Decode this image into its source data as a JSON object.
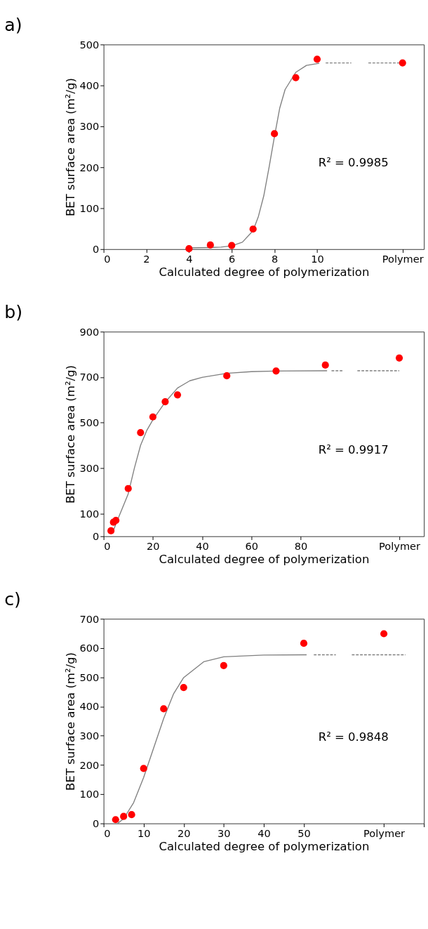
{
  "chart_data": [
    {
      "type": "scatter",
      "title": "a)",
      "xlabel": "Calculated degree of polymerization",
      "ylabel": "BET surface area (m²/g)",
      "annotations": [
        "R² = 0.9985"
      ],
      "xlim": [
        0,
        15
      ],
      "xticks": [
        0,
        2,
        4,
        6,
        8,
        10,
        {
          "value": 14,
          "label": "Polymer"
        }
      ],
      "ylim": [
        0,
        500
      ],
      "yticks": [
        0,
        100,
        200,
        300,
        400,
        500
      ],
      "grid": false,
      "series": [
        {
          "type": "line",
          "color": "#808080",
          "line_style": "solid",
          "x": [
            4,
            5,
            5.5,
            6,
            6.5,
            7,
            7.25,
            7.5,
            7.75,
            8,
            8.25,
            8.5,
            9,
            9.5,
            10.1
          ],
          "values": [
            3,
            4,
            5,
            8,
            17,
            45,
            80,
            130,
            200,
            275,
            345,
            390,
            432,
            449,
            454
          ]
        },
        {
          "type": "line",
          "color": "#808080",
          "line_style": "dashed",
          "x": [
            10.4,
            11.6
          ],
          "values": [
            455,
            455
          ]
        },
        {
          "type": "line",
          "color": "#808080",
          "line_style": "dashed",
          "x": [
            12.4,
            14
          ],
          "values": [
            455,
            455
          ]
        },
        {
          "color": "#ff0000",
          "marker": "circle",
          "x": [
            4,
            5,
            6,
            7,
            8,
            9,
            10
          ],
          "values": [
            1,
            10,
            9,
            49,
            282,
            419,
            464
          ]
        },
        {
          "color": "#ff0000",
          "marker": "circle",
          "x": [
            14
          ],
          "values": [
            455
          ]
        }
      ]
    },
    {
      "type": "scatter",
      "title": "b)",
      "xlabel": "Calculated degree of polymerization",
      "ylabel": "BET surface area (m²/g)",
      "annotations": [
        "R² = 0.9917"
      ],
      "xlim": [
        0,
        130
      ],
      "xticks": [
        0,
        20,
        40,
        60,
        80,
        {
          "value": 120,
          "label": "Polymer"
        }
      ],
      "ylim": [
        0,
        900
      ],
      "yticks": [
        0,
        100,
        300,
        500,
        700,
        900
      ],
      "grid": false,
      "series": [
        {
          "type": "line",
          "color": "#808080",
          "line_style": "solid",
          "x": [
            3.7,
            5,
            7.5,
            10,
            12.5,
            15,
            17.5,
            20,
            25,
            30,
            35,
            40,
            50,
            60,
            70,
            90.7
          ],
          "values": [
            17,
            55,
            120,
            187,
            300,
            400,
            465,
            512,
            590,
            652,
            684,
            699,
            717,
            724,
            727,
            728
          ]
        },
        {
          "type": "line",
          "color": "#808080",
          "line_style": "dashed",
          "x": [
            92.5,
            97
          ],
          "values": [
            728,
            728
          ]
        },
        {
          "type": "line",
          "color": "#808080",
          "line_style": "dashed",
          "x": [
            103,
            120
          ],
          "values": [
            728,
            728
          ]
        },
        {
          "color": "#ff0000",
          "marker": "circle",
          "x": [
            3,
            4,
            5,
            10,
            15,
            20,
            25,
            30,
            50,
            70,
            90
          ],
          "values": [
            24,
            62,
            70,
            210,
            456,
            525,
            592,
            622,
            706,
            727,
            753
          ]
        },
        {
          "color": "#ff0000",
          "marker": "circle",
          "x": [
            120
          ],
          "values": [
            784
          ]
        }
      ]
    },
    {
      "type": "scatter",
      "title": "c)",
      "xlabel": "Calculated degree of polymerization",
      "ylabel": "BET surface area (m²/g)",
      "annotations": [
        "R² = 0.9848"
      ],
      "xlim": [
        0,
        80
      ],
      "xticks": [
        0,
        10,
        20,
        30,
        40,
        50,
        {
          "value": 70,
          "label": "Polymer"
        },
        {
          "value": 80,
          "label": null
        }
      ],
      "ylim": [
        0,
        700
      ],
      "yticks": [
        0,
        100,
        200,
        300,
        400,
        500,
        600,
        700
      ],
      "grid": false,
      "series": [
        {
          "type": "line",
          "color": "#808080",
          "line_style": "solid",
          "x": [
            3.5,
            5,
            7.5,
            10,
            12.5,
            15,
            17.5,
            20,
            25,
            30,
            40,
            50.7
          ],
          "values": [
            0,
            16,
            71,
            157,
            258,
            359,
            444,
            499,
            553,
            570,
            576,
            577
          ]
        },
        {
          "type": "line",
          "color": "#808080",
          "line_style": "dashed",
          "x": [
            52.5,
            58
          ],
          "values": [
            577,
            577
          ]
        },
        {
          "type": "line",
          "color": "#808080",
          "line_style": "dashed",
          "x": [
            62,
            75.4
          ],
          "values": [
            577,
            577
          ]
        },
        {
          "color": "#ff0000",
          "marker": "circle",
          "x": [
            3,
            5,
            7,
            10,
            15,
            20,
            30,
            50
          ],
          "values": [
            13,
            24,
            30,
            188,
            392,
            465,
            540,
            616
          ]
        },
        {
          "color": "#ff0000",
          "marker": "circle",
          "x": [
            70
          ],
          "values": [
            649
          ]
        }
      ]
    }
  ]
}
